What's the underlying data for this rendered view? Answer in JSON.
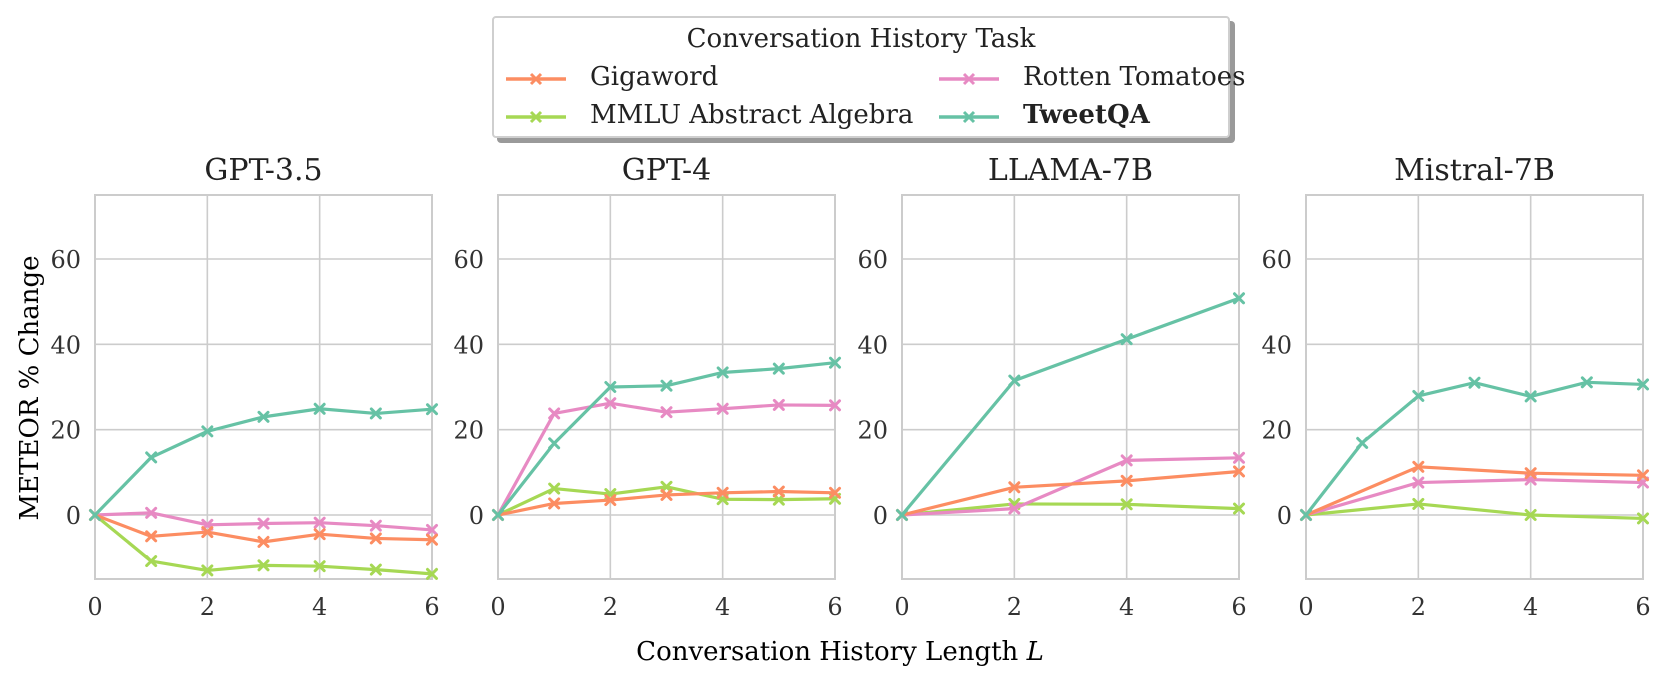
{
  "figure": {
    "supxlabel_prefix": "Conversation History Length ",
    "supxlabel_var": "L",
    "supylabel": "METEOR % Change"
  },
  "legend": {
    "title": "Conversation History Task",
    "entries": [
      {
        "label": "Gigaword",
        "color": "#fc8d62",
        "bold": false
      },
      {
        "label": "Rotten Tomatoes",
        "color": "#e78ac3",
        "bold": false
      },
      {
        "label": "MMLU Abstract Algebra",
        "color": "#a6d854",
        "bold": false
      },
      {
        "label": "TweetQA",
        "color": "#66c2a5",
        "bold": true
      }
    ]
  },
  "colors": {
    "Gigaword": "#fc8d62",
    "Rotten Tomatoes": "#e78ac3",
    "MMLU Abstract Algebra": "#a6d854",
    "TweetQA": "#66c2a5",
    "grid": "#cccccc",
    "axis": "#cccccc"
  },
  "chart_data": [
    {
      "type": "line",
      "title": "GPT-3.5",
      "xlabel": "Conversation History Length L",
      "ylabel": "METEOR % Change",
      "xlim": [
        0,
        6
      ],
      "ylim": [
        -15,
        75
      ],
      "xticks": [
        0,
        2,
        4,
        6
      ],
      "yticks": [
        0,
        20,
        40,
        60
      ],
      "x": [
        0,
        1,
        2,
        3,
        4,
        5,
        6
      ],
      "series": [
        {
          "name": "Gigaword",
          "x": [
            0,
            1,
            2,
            3,
            4,
            5,
            6
          ],
          "values": [
            0,
            -5,
            -4,
            -6.3,
            -4.5,
            -5.5,
            -5.8
          ]
        },
        {
          "name": "Rotten Tomatoes",
          "x": [
            0,
            1,
            2,
            3,
            4,
            5,
            6
          ],
          "values": [
            0,
            0.5,
            -2.3,
            -2,
            -1.8,
            -2.5,
            -3.5
          ]
        },
        {
          "name": "MMLU Abstract Algebra",
          "x": [
            0,
            1,
            2,
            3,
            4,
            5,
            6
          ],
          "values": [
            0,
            -10.8,
            -13,
            -11.8,
            -12,
            -12.8,
            -13.8
          ]
        },
        {
          "name": "TweetQA",
          "x": [
            0,
            1,
            2,
            3,
            4,
            5,
            6
          ],
          "values": [
            0,
            13.5,
            19.6,
            23,
            24.9,
            23.8,
            24.8
          ]
        }
      ]
    },
    {
      "type": "line",
      "title": "GPT-4",
      "xlabel": "Conversation History Length L",
      "ylabel": "METEOR % Change",
      "xlim": [
        0,
        6
      ],
      "ylim": [
        -15,
        75
      ],
      "xticks": [
        0,
        2,
        4,
        6
      ],
      "yticks": [
        0,
        20,
        40,
        60
      ],
      "x": [
        0,
        1,
        2,
        3,
        4,
        5,
        6
      ],
      "series": [
        {
          "name": "Gigaword",
          "x": [
            0,
            1,
            2,
            3,
            4,
            5,
            6
          ],
          "values": [
            0,
            2.7,
            3.5,
            4.7,
            5.2,
            5.5,
            5.2
          ]
        },
        {
          "name": "Rotten Tomatoes",
          "x": [
            0,
            1,
            2,
            3,
            4,
            5,
            6
          ],
          "values": [
            0,
            23.8,
            26.2,
            24.1,
            24.9,
            25.8,
            25.7
          ]
        },
        {
          "name": "MMLU Abstract Algebra",
          "x": [
            0,
            1,
            2,
            3,
            4,
            5,
            6
          ],
          "values": [
            0,
            6.2,
            4.9,
            6.6,
            3.7,
            3.6,
            3.8
          ]
        },
        {
          "name": "TweetQA",
          "x": [
            0,
            1,
            2,
            3,
            4,
            5,
            6
          ],
          "values": [
            0,
            16.8,
            30,
            30.3,
            33.4,
            34.3,
            35.7
          ]
        }
      ]
    },
    {
      "type": "line",
      "title": "LLAMA-7B",
      "xlabel": "Conversation History Length L",
      "ylabel": "METEOR % Change",
      "xlim": [
        0,
        6
      ],
      "ylim": [
        -15,
        75
      ],
      "xticks": [
        0,
        2,
        4,
        6
      ],
      "yticks": [
        0,
        20,
        40,
        60
      ],
      "x": [
        0,
        2,
        4,
        6
      ],
      "series": [
        {
          "name": "Gigaword",
          "x": [
            0,
            2,
            4,
            6
          ],
          "values": [
            0,
            6.5,
            8,
            10.2
          ]
        },
        {
          "name": "Rotten Tomatoes",
          "x": [
            0,
            2,
            4,
            6
          ],
          "values": [
            0,
            1.5,
            12.8,
            13.4
          ]
        },
        {
          "name": "MMLU Abstract Algebra",
          "x": [
            0,
            2,
            4,
            6
          ],
          "values": [
            0,
            2.6,
            2.5,
            1.5
          ]
        },
        {
          "name": "TweetQA",
          "x": [
            0,
            2,
            4,
            6
          ],
          "values": [
            0,
            31.5,
            41.2,
            50.8
          ]
        }
      ]
    },
    {
      "type": "line",
      "title": "Mistral-7B",
      "xlabel": "Conversation History Length L",
      "ylabel": "METEOR % Change",
      "xlim": [
        0,
        6
      ],
      "ylim": [
        -15,
        75
      ],
      "xticks": [
        0,
        2,
        4,
        6
      ],
      "yticks": [
        0,
        20,
        40,
        60
      ],
      "x": [
        0,
        1,
        2,
        3,
        4,
        5,
        6
      ],
      "series": [
        {
          "name": "Gigaword",
          "x": [
            0,
            2,
            4,
            6
          ],
          "values": [
            0,
            11.3,
            9.8,
            9.3
          ]
        },
        {
          "name": "Rotten Tomatoes",
          "x": [
            0,
            2,
            4,
            6
          ],
          "values": [
            0,
            7.6,
            8.3,
            7.6
          ]
        },
        {
          "name": "MMLU Abstract Algebra",
          "x": [
            0,
            2,
            4,
            6
          ],
          "values": [
            0,
            2.6,
            0,
            -0.8
          ]
        },
        {
          "name": "TweetQA",
          "x": [
            0,
            1,
            2,
            3,
            4,
            5,
            6
          ],
          "values": [
            0,
            16.9,
            27.9,
            31,
            27.8,
            31.1,
            30.6
          ]
        }
      ]
    }
  ]
}
